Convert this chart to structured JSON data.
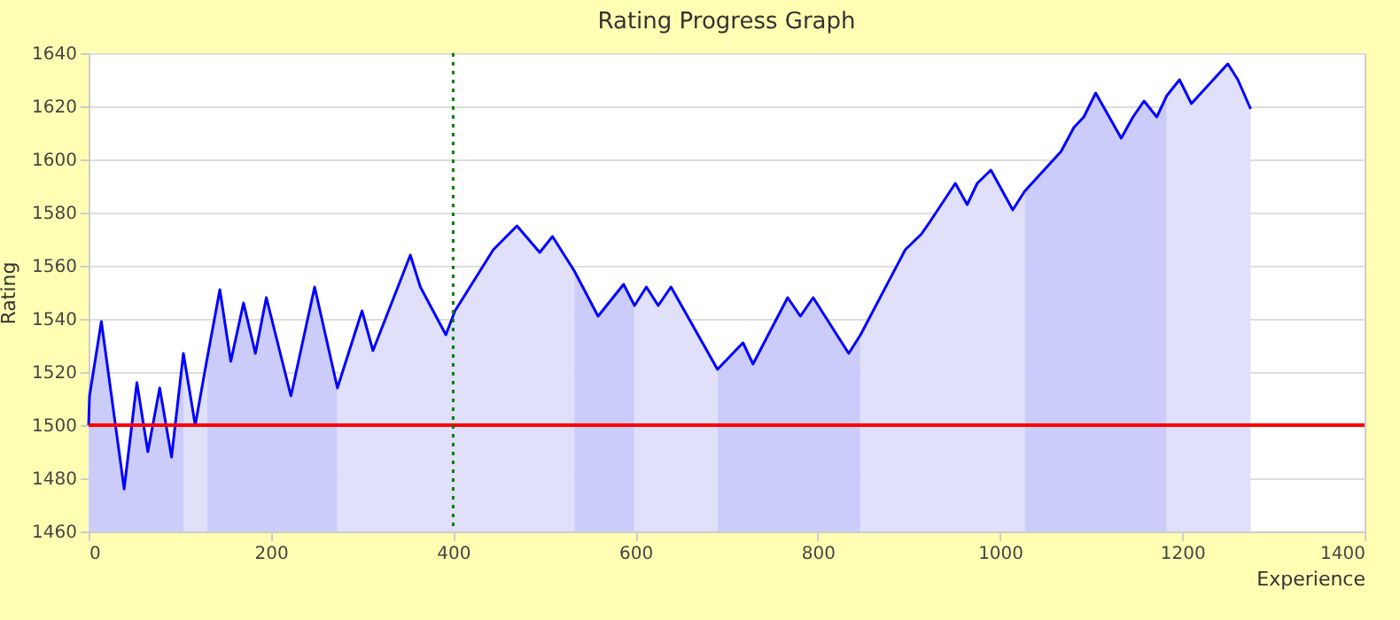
{
  "chart_data": {
    "type": "line",
    "title": "Rating Progress Graph",
    "xlabel": "Experience",
    "ylabel": "Rating",
    "xlim": [
      0,
      1400
    ],
    "xticks": [
      0,
      200,
      400,
      600,
      800,
      1000,
      1200,
      1400
    ],
    "ylim": [
      1460,
      1640
    ],
    "yticks": [
      1460,
      1480,
      1500,
      1520,
      1540,
      1560,
      1580,
      1600,
      1620,
      1640
    ],
    "grid": "y",
    "marker": "none",
    "line_style": "solid",
    "series": [
      {
        "type": "area",
        "color": "#ccccfa",
        "x": [
          0,
          1,
          14,
          39,
          53,
          65,
          78,
          91,
          104
        ],
        "values": [
          1500,
          1511,
          1539,
          1476,
          1516,
          1490,
          1514,
          1488,
          1527
        ]
      },
      {
        "type": "area",
        "color": "#e0e0fa",
        "x": [
          104,
          117,
          130
        ],
        "values": [
          1527,
          1500,
          1525
        ]
      },
      {
        "type": "area",
        "color": "#ccccfa",
        "x": [
          130,
          144,
          156,
          170,
          183,
          195,
          222,
          248,
          273
        ],
        "values": [
          1525,
          1551,
          1524,
          1546,
          1527,
          1548,
          1511,
          1552,
          1514
        ]
      },
      {
        "type": "area",
        "color": "#e0e0fa",
        "x": [
          273,
          300,
          312,
          353,
          364,
          392,
          402,
          444,
          470,
          495,
          509,
          533
        ],
        "values": [
          1514,
          1543,
          1528,
          1564,
          1552,
          1534,
          1543,
          1566,
          1575,
          1565,
          1571,
          1558
        ]
      },
      {
        "type": "area",
        "color": "#ccccfa",
        "x": [
          533,
          559,
          587,
          599
        ],
        "values": [
          1558,
          1541,
          1553,
          1545
        ]
      },
      {
        "type": "area",
        "color": "#e0e0fa",
        "x": [
          599,
          612,
          625,
          639,
          690
        ],
        "values": [
          1545,
          1552,
          1545,
          1552,
          1521
        ]
      },
      {
        "type": "area",
        "color": "#ccccfa",
        "x": [
          690,
          718,
          729,
          767,
          781,
          795,
          834,
          847
        ],
        "values": [
          1521,
          1531,
          1523,
          1548,
          1541,
          1548,
          1527,
          1534
        ]
      },
      {
        "type": "area",
        "color": "#e0e0fa",
        "x": [
          847,
          896,
          914,
          924,
          951,
          964,
          975,
          990,
          1014,
          1027
        ],
        "values": [
          1534,
          1566,
          1572,
          1577,
          1591,
          1583,
          1591,
          1596,
          1581,
          1588
        ]
      },
      {
        "type": "area",
        "color": "#ccccfa",
        "x": [
          1027,
          1067,
          1081,
          1092,
          1105,
          1133,
          1146,
          1158,
          1172,
          1183
        ],
        "values": [
          1588,
          1603,
          1612,
          1616,
          1625,
          1608,
          1616,
          1622,
          1616,
          1624
        ]
      },
      {
        "type": "area",
        "color": "#e0e0fa",
        "x": [
          1183,
          1197,
          1210,
          1250,
          1261,
          1275
        ],
        "values": [
          1624,
          1630,
          1621,
          1636,
          1630,
          1619
        ]
      },
      {
        "type": "line",
        "color": "#0000ff",
        "x": [
          0,
          1,
          14,
          39,
          53,
          65,
          78,
          91,
          104,
          117,
          130,
          144,
          156,
          170,
          183,
          195,
          222,
          248,
          273,
          300,
          312,
          353,
          364,
          392,
          402,
          444,
          470,
          495,
          509,
          533,
          559,
          587,
          599,
          612,
          625,
          639,
          690,
          718,
          729,
          767,
          781,
          795,
          834,
          847,
          896,
          914,
          924,
          951,
          964,
          975,
          990,
          1014,
          1027,
          1067,
          1081,
          1092,
          1105,
          1133,
          1146,
          1158,
          1172,
          1183,
          1197,
          1210,
          1250,
          1261,
          1275
        ],
        "values": [
          1500,
          1511,
          1539,
          1476,
          1516,
          1490,
          1514,
          1488,
          1527,
          1500,
          1525,
          1551,
          1524,
          1546,
          1527,
          1548,
          1511,
          1552,
          1514,
          1543,
          1528,
          1564,
          1552,
          1534,
          1543,
          1566,
          1575,
          1565,
          1571,
          1558,
          1541,
          1553,
          1545,
          1552,
          1545,
          1552,
          1521,
          1531,
          1523,
          1548,
          1541,
          1548,
          1527,
          1534,
          1566,
          1572,
          1577,
          1591,
          1583,
          1591,
          1596,
          1581,
          1588,
          1603,
          1612,
          1616,
          1625,
          1608,
          1616,
          1622,
          1616,
          1624,
          1630,
          1621,
          1636,
          1630,
          1619
        ]
      }
    ],
    "ref_lines": [
      {
        "axis": "y",
        "value": 1500,
        "color": "#ff0000",
        "line_style": "solid"
      },
      {
        "axis": "x",
        "value": 400,
        "color": "#008000",
        "line_style": "dotted"
      }
    ]
  }
}
